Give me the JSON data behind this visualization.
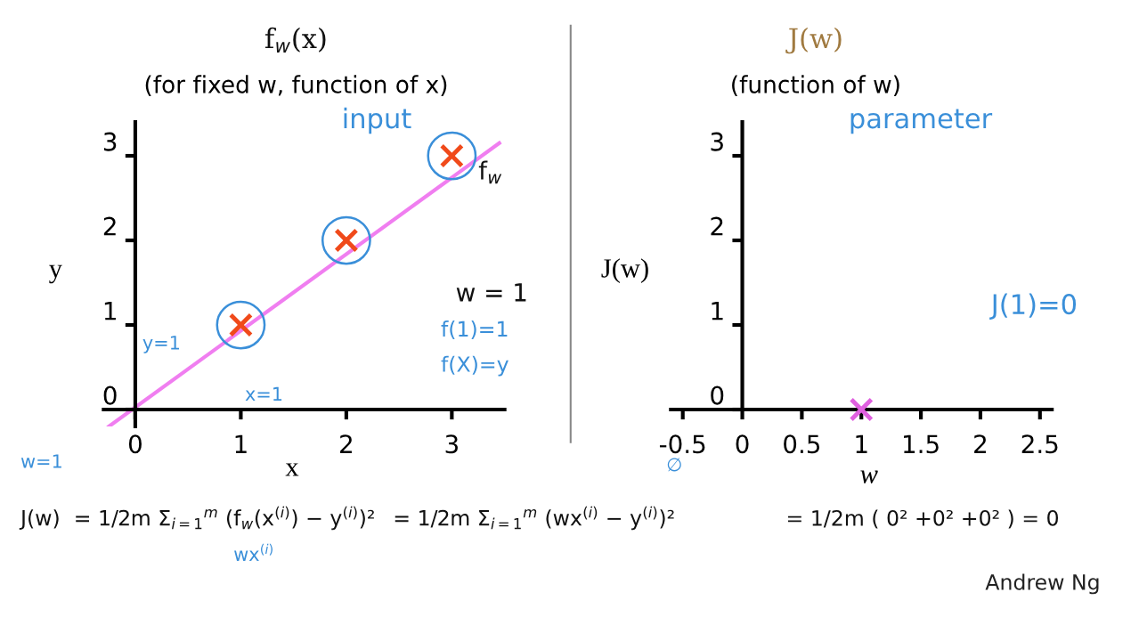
{
  "chart_data": [
    {
      "type": "scatter",
      "title": "f$_{w}$(x)",
      "subtitle": "(for fixed w, function of x)",
      "xlabel": "x",
      "ylabel": "y",
      "xlim": [
        -0.3,
        3.5
      ],
      "ylim": [
        -0.2,
        3.4
      ],
      "xticks": [
        0,
        1,
        2,
        3
      ],
      "yticks": [
        0,
        1,
        2,
        3
      ],
      "grid": false,
      "legend": false,
      "series": [
        {
          "type": "line",
          "color": "#f07ef0",
          "x": [
            -0.25,
            3.45
          ],
          "values": [
            -0.2,
            3.15
          ],
          "marker": "none",
          "line_style": "solid"
        },
        {
          "color": "#f04a1a",
          "x": [
            1,
            2,
            3
          ],
          "values": [
            1,
            2,
            3
          ],
          "marker": "cross"
        }
      ],
      "annotations": [
        "input",
        "f$_{w}$",
        "w = 1",
        "f(1)=1",
        "f(X)=y",
        "y=1",
        "x=1",
        "w=1",
        "J(w)  = 1/2m Σ$_{i=1}$$^{m}$ (f$_{w}$(x$^{(i)}$) − y$^{(i)}$)²",
        "= 1/2m Σ$_{i=1}$$^{m}$ (wx$^{(i)}$ − y$^{(i)}$)²",
        "= 1/2m ( 0² +0² +0² ) = 0",
        "wx$^{(i)}$",
        "∅",
        "Andrew Ng"
      ]
    },
    {
      "type": "scatter",
      "title": "J(w)",
      "subtitle": "(function of w)",
      "xlabel": "w",
      "ylabel": "J(w)",
      "xlim": [
        -0.6,
        2.6
      ],
      "ylim": [
        0,
        3.4
      ],
      "xticks": [
        -0.5,
        0,
        0.5,
        1,
        1.5,
        2,
        2.5
      ],
      "yticks": [
        0,
        1,
        2,
        3
      ],
      "grid": false,
      "legend": false,
      "series": [
        {
          "color": "#e060e0",
          "x": [
            1
          ],
          "values": [
            0
          ],
          "marker": "cross"
        }
      ],
      "annotations": [
        "parameter",
        "J(1)=0"
      ]
    }
  ]
}
